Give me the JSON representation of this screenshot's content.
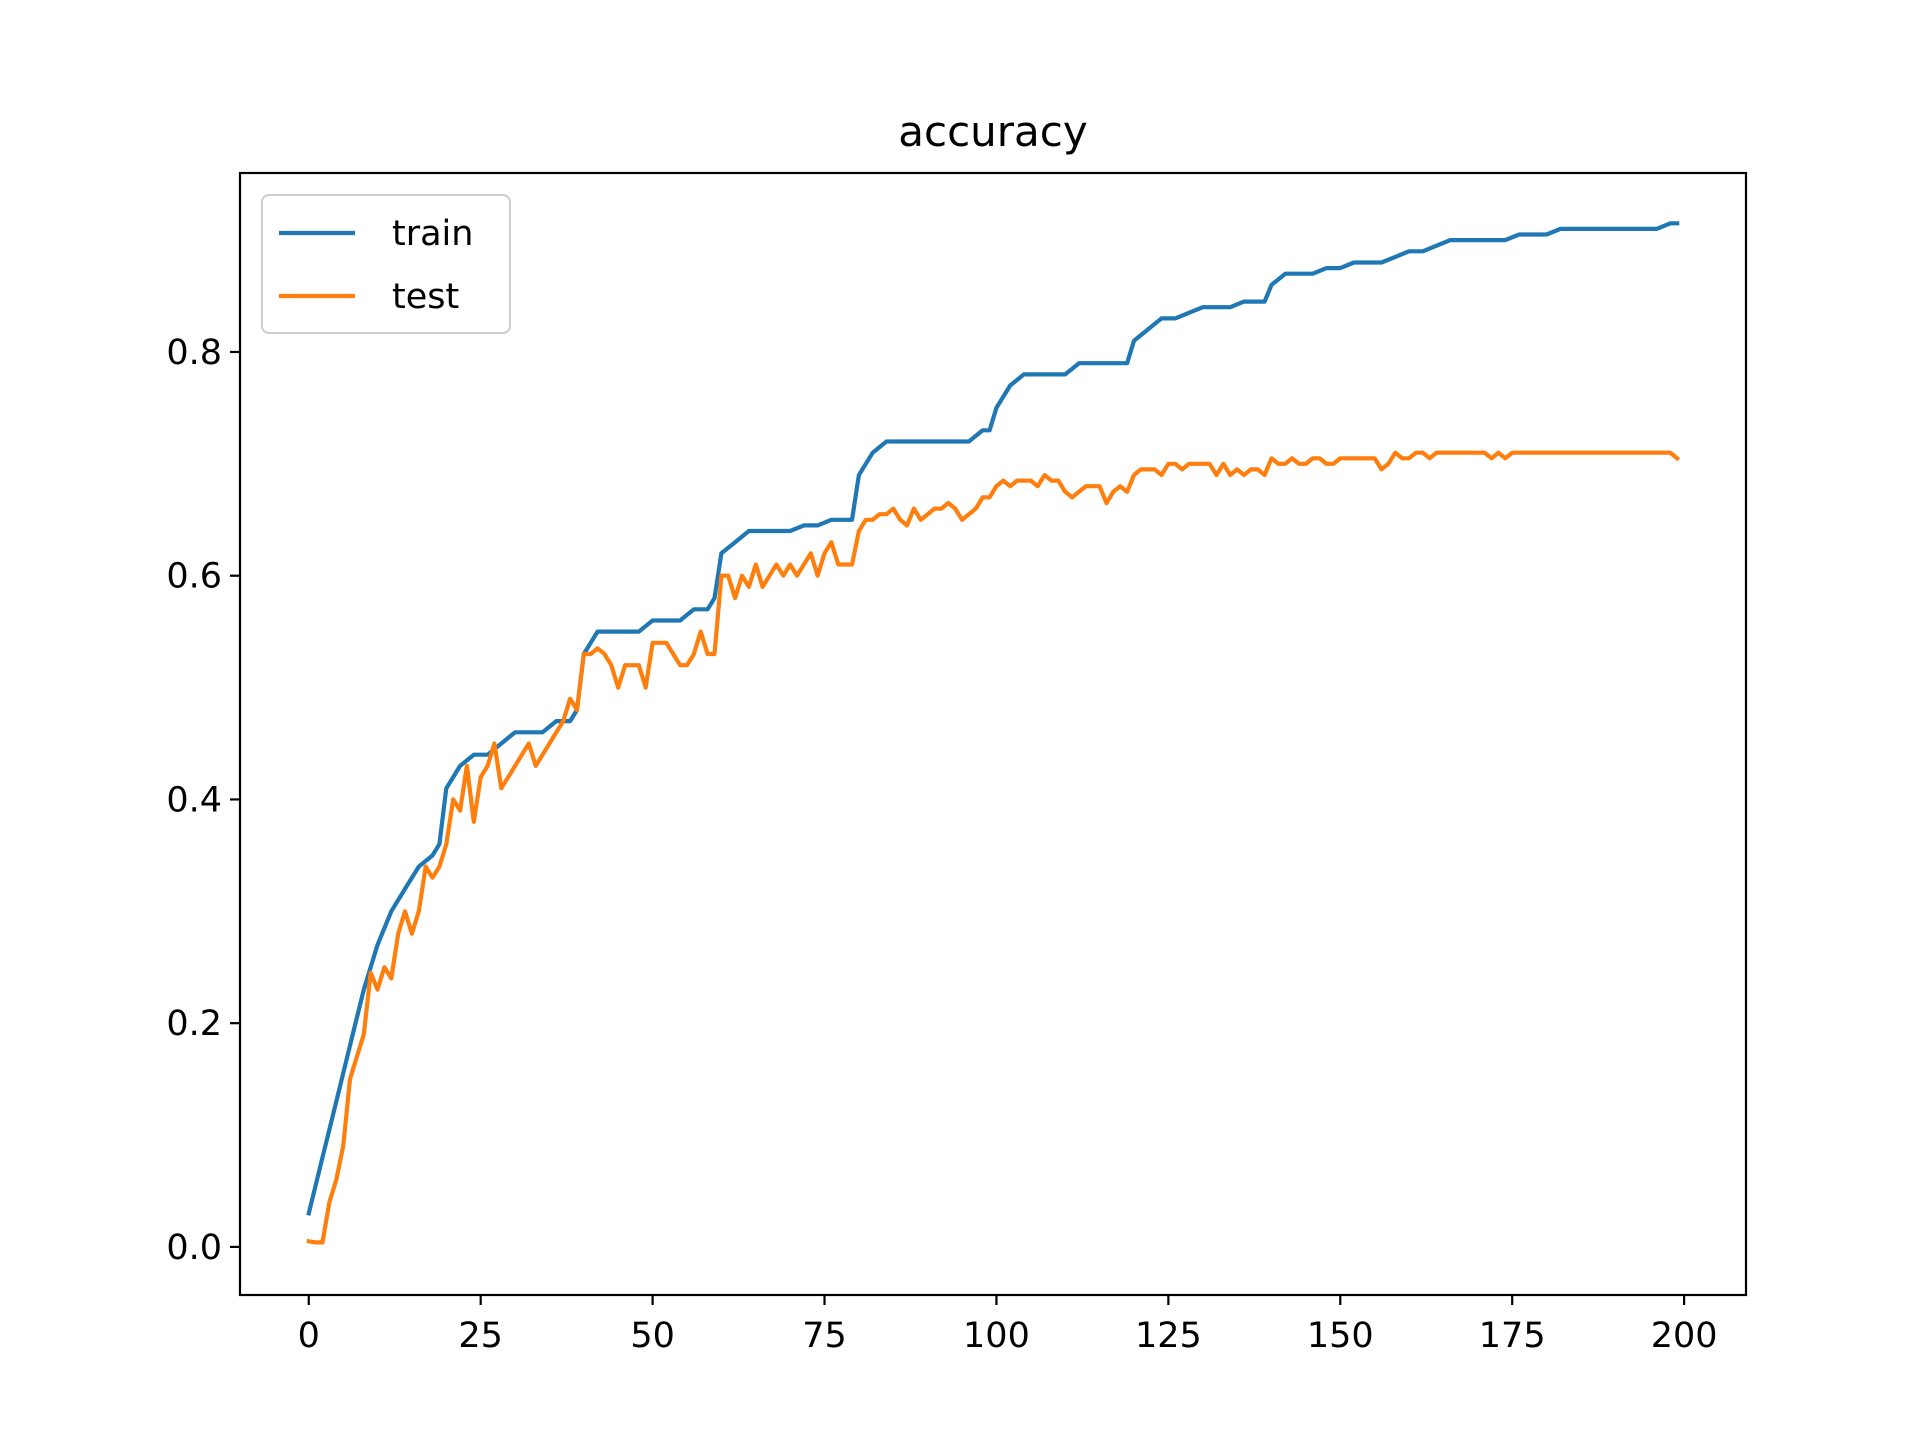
{
  "chart_data": {
    "type": "line",
    "title": "accuracy",
    "xlabel": "",
    "ylabel": "",
    "xlim": [
      -10,
      209
    ],
    "ylim": [
      -0.043,
      0.96
    ],
    "x_ticks": [
      0,
      25,
      50,
      75,
      100,
      125,
      150,
      175,
      200
    ],
    "y_ticks": [
      0.0,
      0.2,
      0.4,
      0.6,
      0.8
    ],
    "grid": false,
    "legend_position": "upper left",
    "series": [
      {
        "name": "train",
        "color": "#1f77b4",
        "points": [
          [
            0,
            0.03
          ],
          [
            2,
            0.08
          ],
          [
            4,
            0.13
          ],
          [
            6,
            0.18
          ],
          [
            8,
            0.23
          ],
          [
            10,
            0.27
          ],
          [
            12,
            0.3
          ],
          [
            14,
            0.32
          ],
          [
            16,
            0.34
          ],
          [
            18,
            0.35
          ],
          [
            19,
            0.36
          ],
          [
            20,
            0.41
          ],
          [
            21,
            0.42
          ],
          [
            22,
            0.43
          ],
          [
            24,
            0.44
          ],
          [
            26,
            0.44
          ],
          [
            28,
            0.45
          ],
          [
            30,
            0.46
          ],
          [
            32,
            0.46
          ],
          [
            34,
            0.46
          ],
          [
            36,
            0.47
          ],
          [
            38,
            0.47
          ],
          [
            39,
            0.48
          ],
          [
            40,
            0.53
          ],
          [
            42,
            0.55
          ],
          [
            44,
            0.55
          ],
          [
            46,
            0.55
          ],
          [
            48,
            0.55
          ],
          [
            50,
            0.56
          ],
          [
            52,
            0.56
          ],
          [
            54,
            0.56
          ],
          [
            56,
            0.57
          ],
          [
            58,
            0.57
          ],
          [
            59,
            0.58
          ],
          [
            60,
            0.62
          ],
          [
            62,
            0.63
          ],
          [
            64,
            0.64
          ],
          [
            66,
            0.64
          ],
          [
            68,
            0.64
          ],
          [
            70,
            0.64
          ],
          [
            72,
            0.645
          ],
          [
            74,
            0.645
          ],
          [
            76,
            0.65
          ],
          [
            78,
            0.65
          ],
          [
            79,
            0.65
          ],
          [
            80,
            0.69
          ],
          [
            82,
            0.71
          ],
          [
            84,
            0.72
          ],
          [
            86,
            0.72
          ],
          [
            88,
            0.72
          ],
          [
            90,
            0.72
          ],
          [
            92,
            0.72
          ],
          [
            94,
            0.72
          ],
          [
            96,
            0.72
          ],
          [
            98,
            0.73
          ],
          [
            99,
            0.73
          ],
          [
            100,
            0.75
          ],
          [
            102,
            0.77
          ],
          [
            104,
            0.78
          ],
          [
            106,
            0.78
          ],
          [
            108,
            0.78
          ],
          [
            110,
            0.78
          ],
          [
            112,
            0.79
          ],
          [
            114,
            0.79
          ],
          [
            116,
            0.79
          ],
          [
            118,
            0.79
          ],
          [
            119,
            0.79
          ],
          [
            120,
            0.81
          ],
          [
            122,
            0.82
          ],
          [
            124,
            0.83
          ],
          [
            126,
            0.83
          ],
          [
            128,
            0.835
          ],
          [
            130,
            0.84
          ],
          [
            132,
            0.84
          ],
          [
            134,
            0.84
          ],
          [
            136,
            0.845
          ],
          [
            138,
            0.845
          ],
          [
            139,
            0.845
          ],
          [
            140,
            0.86
          ],
          [
            142,
            0.87
          ],
          [
            144,
            0.87
          ],
          [
            146,
            0.87
          ],
          [
            148,
            0.875
          ],
          [
            150,
            0.875
          ],
          [
            152,
            0.88
          ],
          [
            154,
            0.88
          ],
          [
            156,
            0.88
          ],
          [
            158,
            0.885
          ],
          [
            160,
            0.89
          ],
          [
            162,
            0.89
          ],
          [
            164,
            0.895
          ],
          [
            166,
            0.9
          ],
          [
            168,
            0.9
          ],
          [
            170,
            0.9
          ],
          [
            172,
            0.9
          ],
          [
            174,
            0.9
          ],
          [
            176,
            0.905
          ],
          [
            178,
            0.905
          ],
          [
            180,
            0.905
          ],
          [
            182,
            0.91
          ],
          [
            184,
            0.91
          ],
          [
            186,
            0.91
          ],
          [
            188,
            0.91
          ],
          [
            190,
            0.91
          ],
          [
            192,
            0.91
          ],
          [
            194,
            0.91
          ],
          [
            196,
            0.91
          ],
          [
            198,
            0.915
          ],
          [
            199,
            0.915
          ]
        ]
      },
      {
        "name": "test",
        "color": "#ff7f0e",
        "points": [
          [
            0,
            0.005
          ],
          [
            1,
            0.004
          ],
          [
            2,
            0.004
          ],
          [
            3,
            0.04
          ],
          [
            4,
            0.06
          ],
          [
            5,
            0.09
          ],
          [
            6,
            0.15
          ],
          [
            7,
            0.17
          ],
          [
            8,
            0.19
          ],
          [
            9,
            0.245
          ],
          [
            10,
            0.23
          ],
          [
            11,
            0.25
          ],
          [
            12,
            0.24
          ],
          [
            13,
            0.28
          ],
          [
            14,
            0.3
          ],
          [
            15,
            0.28
          ],
          [
            16,
            0.3
          ],
          [
            17,
            0.34
          ],
          [
            18,
            0.33
          ],
          [
            19,
            0.34
          ],
          [
            20,
            0.36
          ],
          [
            21,
            0.4
          ],
          [
            22,
            0.39
          ],
          [
            23,
            0.43
          ],
          [
            24,
            0.38
          ],
          [
            25,
            0.42
          ],
          [
            26,
            0.43
          ],
          [
            27,
            0.45
          ],
          [
            28,
            0.41
          ],
          [
            29,
            0.42
          ],
          [
            30,
            0.43
          ],
          [
            31,
            0.44
          ],
          [
            32,
            0.45
          ],
          [
            33,
            0.43
          ],
          [
            34,
            0.44
          ],
          [
            35,
            0.45
          ],
          [
            36,
            0.46
          ],
          [
            37,
            0.47
          ],
          [
            38,
            0.49
          ],
          [
            39,
            0.48
          ],
          [
            40,
            0.53
          ],
          [
            41,
            0.53
          ],
          [
            42,
            0.535
          ],
          [
            43,
            0.53
          ],
          [
            44,
            0.52
          ],
          [
            45,
            0.5
          ],
          [
            46,
            0.52
          ],
          [
            47,
            0.52
          ],
          [
            48,
            0.52
          ],
          [
            49,
            0.5
          ],
          [
            50,
            0.54
          ],
          [
            51,
            0.54
          ],
          [
            52,
            0.54
          ],
          [
            53,
            0.53
          ],
          [
            54,
            0.52
          ],
          [
            55,
            0.52
          ],
          [
            56,
            0.53
          ],
          [
            57,
            0.55
          ],
          [
            58,
            0.53
          ],
          [
            59,
            0.53
          ],
          [
            60,
            0.6
          ],
          [
            61,
            0.6
          ],
          [
            62,
            0.58
          ],
          [
            63,
            0.6
          ],
          [
            64,
            0.59
          ],
          [
            65,
            0.61
          ],
          [
            66,
            0.59
          ],
          [
            67,
            0.6
          ],
          [
            68,
            0.61
          ],
          [
            69,
            0.6
          ],
          [
            70,
            0.61
          ],
          [
            71,
            0.6
          ],
          [
            72,
            0.61
          ],
          [
            73,
            0.62
          ],
          [
            74,
            0.6
          ],
          [
            75,
            0.62
          ],
          [
            76,
            0.63
          ],
          [
            77,
            0.61
          ],
          [
            78,
            0.61
          ],
          [
            79,
            0.61
          ],
          [
            80,
            0.64
          ],
          [
            81,
            0.65
          ],
          [
            82,
            0.65
          ],
          [
            83,
            0.655
          ],
          [
            84,
            0.655
          ],
          [
            85,
            0.66
          ],
          [
            86,
            0.65
          ],
          [
            87,
            0.645
          ],
          [
            88,
            0.66
          ],
          [
            89,
            0.65
          ],
          [
            90,
            0.655
          ],
          [
            91,
            0.66
          ],
          [
            92,
            0.66
          ],
          [
            93,
            0.665
          ],
          [
            94,
            0.66
          ],
          [
            95,
            0.65
          ],
          [
            96,
            0.655
          ],
          [
            97,
            0.66
          ],
          [
            98,
            0.67
          ],
          [
            99,
            0.67
          ],
          [
            100,
            0.68
          ],
          [
            101,
            0.685
          ],
          [
            102,
            0.68
          ],
          [
            103,
            0.685
          ],
          [
            104,
            0.685
          ],
          [
            105,
            0.685
          ],
          [
            106,
            0.68
          ],
          [
            107,
            0.69
          ],
          [
            108,
            0.685
          ],
          [
            109,
            0.685
          ],
          [
            110,
            0.675
          ],
          [
            111,
            0.67
          ],
          [
            112,
            0.675
          ],
          [
            113,
            0.68
          ],
          [
            114,
            0.68
          ],
          [
            115,
            0.68
          ],
          [
            116,
            0.665
          ],
          [
            117,
            0.675
          ],
          [
            118,
            0.68
          ],
          [
            119,
            0.675
          ],
          [
            120,
            0.69
          ],
          [
            121,
            0.695
          ],
          [
            122,
            0.695
          ],
          [
            123,
            0.695
          ],
          [
            124,
            0.69
          ],
          [
            125,
            0.7
          ],
          [
            126,
            0.7
          ],
          [
            127,
            0.695
          ],
          [
            128,
            0.7
          ],
          [
            129,
            0.7
          ],
          [
            130,
            0.7
          ],
          [
            131,
            0.7
          ],
          [
            132,
            0.69
          ],
          [
            133,
            0.7
          ],
          [
            134,
            0.69
          ],
          [
            135,
            0.695
          ],
          [
            136,
            0.69
          ],
          [
            137,
            0.695
          ],
          [
            138,
            0.695
          ],
          [
            139,
            0.69
          ],
          [
            140,
            0.705
          ],
          [
            141,
            0.7
          ],
          [
            142,
            0.7
          ],
          [
            143,
            0.705
          ],
          [
            144,
            0.7
          ],
          [
            145,
            0.7
          ],
          [
            146,
            0.705
          ],
          [
            147,
            0.705
          ],
          [
            148,
            0.7
          ],
          [
            149,
            0.7
          ],
          [
            150,
            0.705
          ],
          [
            151,
            0.705
          ],
          [
            152,
            0.705
          ],
          [
            153,
            0.705
          ],
          [
            154,
            0.705
          ],
          [
            155,
            0.705
          ],
          [
            156,
            0.695
          ],
          [
            157,
            0.7
          ],
          [
            158,
            0.71
          ],
          [
            159,
            0.705
          ],
          [
            160,
            0.705
          ],
          [
            161,
            0.71
          ],
          [
            162,
            0.71
          ],
          [
            163,
            0.705
          ],
          [
            164,
            0.71
          ],
          [
            165,
            0.71
          ],
          [
            166,
            0.71
          ],
          [
            167,
            0.71
          ],
          [
            168,
            0.71
          ],
          [
            169,
            0.71
          ],
          [
            170,
            0.71
          ],
          [
            171,
            0.71
          ],
          [
            172,
            0.705
          ],
          [
            173,
            0.71
          ],
          [
            174,
            0.705
          ],
          [
            175,
            0.71
          ],
          [
            176,
            0.71
          ],
          [
            177,
            0.71
          ],
          [
            178,
            0.71
          ],
          [
            179,
            0.71
          ],
          [
            180,
            0.71
          ],
          [
            181,
            0.71
          ],
          [
            182,
            0.71
          ],
          [
            183,
            0.71
          ],
          [
            184,
            0.71
          ],
          [
            185,
            0.71
          ],
          [
            186,
            0.71
          ],
          [
            187,
            0.71
          ],
          [
            188,
            0.71
          ],
          [
            189,
            0.71
          ],
          [
            190,
            0.71
          ],
          [
            191,
            0.71
          ],
          [
            192,
            0.71
          ],
          [
            193,
            0.71
          ],
          [
            194,
            0.71
          ],
          [
            195,
            0.71
          ],
          [
            196,
            0.71
          ],
          [
            197,
            0.71
          ],
          [
            198,
            0.71
          ],
          [
            199,
            0.705
          ]
        ]
      }
    ]
  }
}
